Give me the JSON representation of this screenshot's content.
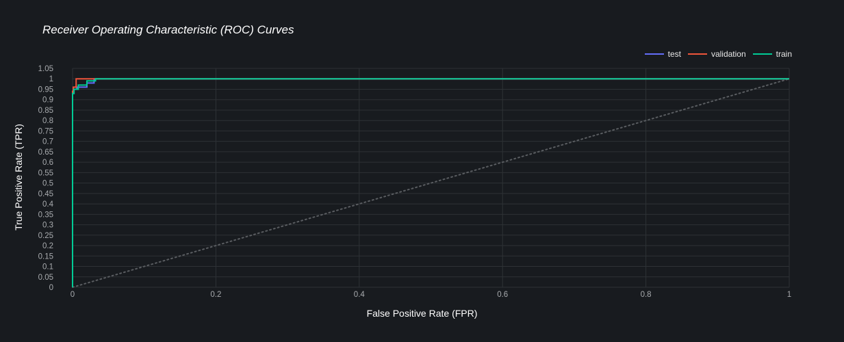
{
  "chart_data": {
    "type": "line",
    "title": "Receiver Operating Characteristic (ROC) Curves",
    "xlabel": "False Positive Rate (FPR)",
    "ylabel": "True Positive Rate (TPR)",
    "xlim": [
      0,
      1
    ],
    "ylim": [
      0,
      1.05
    ],
    "x_ticks": [
      "0",
      "0.2",
      "0.4",
      "0.6",
      "0.8",
      "1"
    ],
    "y_ticks": [
      "0",
      "0.05",
      "0.1",
      "0.15",
      "0.2",
      "0.25",
      "0.3",
      "0.35",
      "0.4",
      "0.45",
      "0.5",
      "0.55",
      "0.6",
      "0.65",
      "0.7",
      "0.75",
      "0.8",
      "0.85",
      "0.9",
      "0.95",
      "1",
      "1.05"
    ],
    "grid": true,
    "legend_position": "top-right",
    "background": "#181b1f",
    "grid_color": "#2e3236",
    "series": [
      {
        "name": "test",
        "color": "#636efa",
        "x": [
          0,
          0,
          0.002,
          0.002,
          0.006,
          0.006,
          0.02,
          0.02,
          0.03,
          0.03,
          1
        ],
        "y": [
          0,
          0.93,
          0.93,
          0.95,
          0.95,
          0.96,
          0.96,
          0.98,
          0.98,
          1.0,
          1.0
        ]
      },
      {
        "name": "validation",
        "color": "#ef553b",
        "x": [
          0,
          0,
          0.001,
          0.001,
          0.005,
          0.005,
          0.018,
          0.018,
          1
        ],
        "y": [
          0,
          0.94,
          0.94,
          0.96,
          0.96,
          1.0,
          1.0,
          1.0,
          1.0
        ]
      },
      {
        "name": "train",
        "color": "#00cc96",
        "x": [
          0,
          0,
          0.002,
          0.002,
          0.008,
          0.008,
          0.02,
          0.02,
          0.032,
          0.032,
          1
        ],
        "y": [
          0,
          0.93,
          0.93,
          0.95,
          0.95,
          0.97,
          0.97,
          0.99,
          0.99,
          1.0,
          1.0
        ]
      }
    ],
    "reference_line": {
      "x": [
        0,
        1
      ],
      "y": [
        0,
        1
      ],
      "color": "#5a5d61",
      "style": "dotted"
    }
  }
}
